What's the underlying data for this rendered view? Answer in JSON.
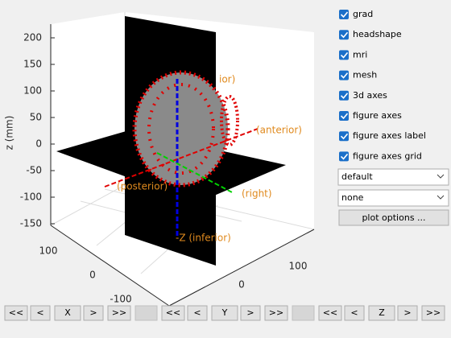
{
  "axes": {
    "zlabel": "z (mm)",
    "zticks": [
      200,
      150,
      100,
      50,
      0,
      -50,
      -100,
      -150
    ],
    "xticks": [
      100,
      0,
      -100
    ],
    "yticks": [
      100,
      0
    ],
    "annotations": [
      "ior)",
      "-Z (inferior)",
      "(anterior)",
      "(right)",
      "(posterior)"
    ]
  },
  "checkboxes": [
    "grad",
    "headshape",
    "mri",
    "mesh",
    "3d axes",
    "figure axes",
    "figure axes label",
    "figure axes grid"
  ],
  "dropdowns": [
    "default",
    "none"
  ],
  "button": "plot options ...",
  "navigation": [
    [
      "<<",
      "<",
      "X",
      ">",
      ">>"
    ],
    [
      "<<",
      "<",
      "Y",
      ">",
      ">>"
    ],
    [
      "<<",
      "<",
      "Z",
      ">",
      ">>"
    ]
  ]
}
